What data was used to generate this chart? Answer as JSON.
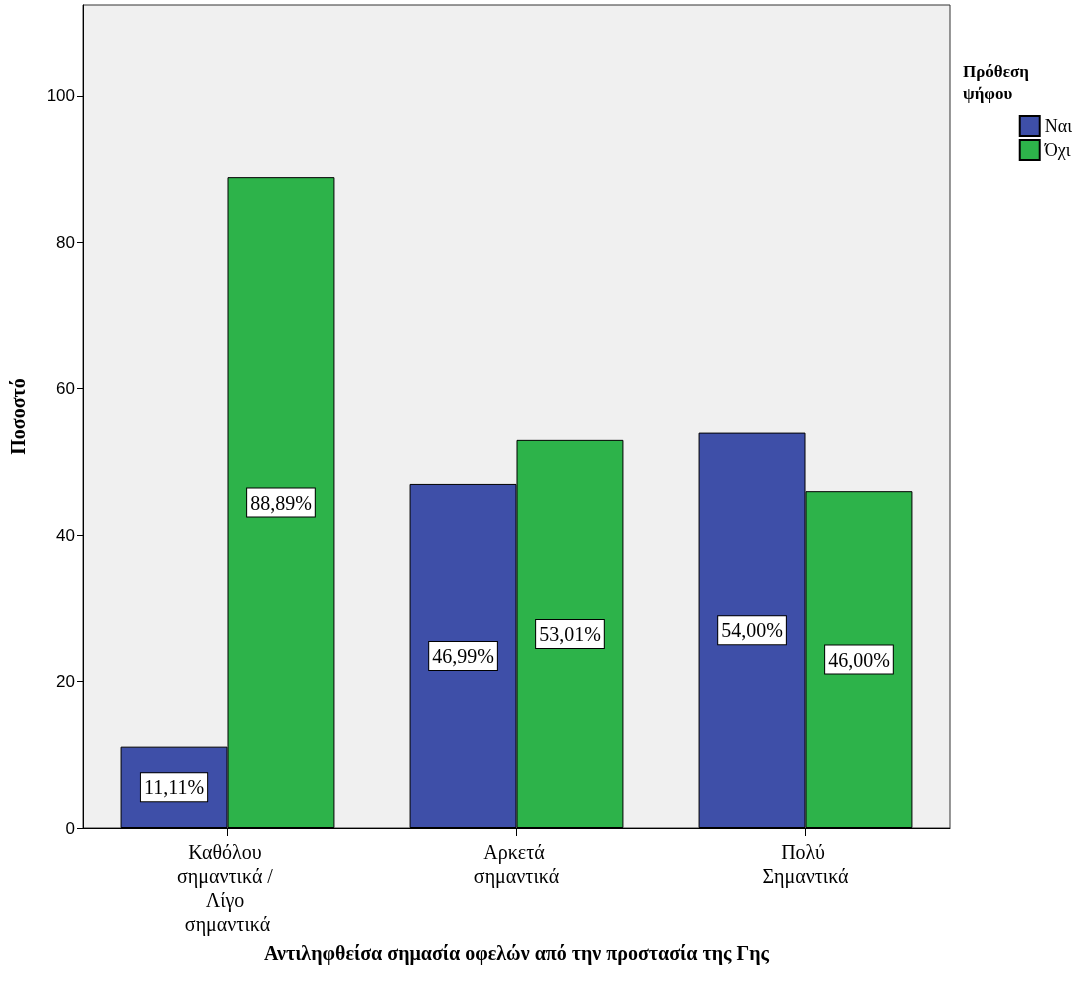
{
  "chart_data": {
    "type": "bar",
    "xlabel": "Αντιληφθείσα σημασία οφελών από την προστασία της Γης",
    "ylabel": "Ποσοστό",
    "legend_title": "Πρόθεση ψήφου",
    "categories": [
      "Καθόλου σημαντικά / Λίγο σημαντικά",
      "Αρκετά σημαντικά",
      "Πολύ Σημαντικά"
    ],
    "series": [
      {
        "name": "Ναι",
        "color": "#3e4fa8",
        "values": [
          11.11,
          46.99,
          54.0
        ],
        "value_labels": [
          "11,11%",
          "46,99%",
          "54,00%"
        ]
      },
      {
        "name": "Όχι",
        "color": "#2db34a",
        "values": [
          88.89,
          53.01,
          46.0
        ],
        "value_labels": [
          "88,89%",
          "53,01%",
          "46,00%"
        ]
      }
    ],
    "ylim": [
      0,
      112.4
    ],
    "yticks": [
      0,
      20,
      40,
      60,
      80,
      100
    ],
    "grid": false,
    "legend": "top right"
  }
}
